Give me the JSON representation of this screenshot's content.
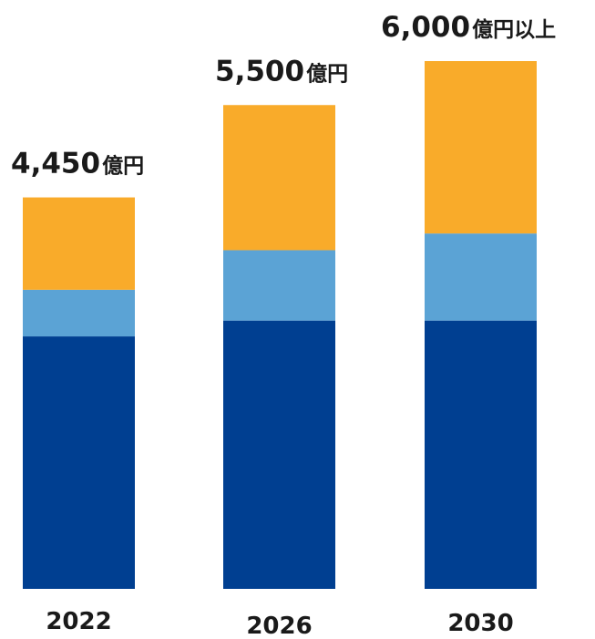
{
  "chart_data": {
    "type": "bar",
    "stacked": true,
    "categories": [
      "2022",
      "2026",
      "2030"
    ],
    "totals": [
      {
        "number": "4,450",
        "unit": "億円"
      },
      {
        "number": "5,500",
        "unit": "億円"
      },
      {
        "number": "6,000",
        "unit": "億円以上"
      }
    ],
    "series": [
      {
        "color": "#003f91",
        "values": [
          2870,
          3050,
          3050
        ]
      },
      {
        "color": "#5ba3d5",
        "values": [
          530,
          800,
          990
        ]
      },
      {
        "color": "#f9ab2a",
        "values": [
          1050,
          1650,
          1960
        ]
      }
    ],
    "ylim": [
      0,
      6000
    ],
    "grid": false,
    "legend": "none"
  }
}
